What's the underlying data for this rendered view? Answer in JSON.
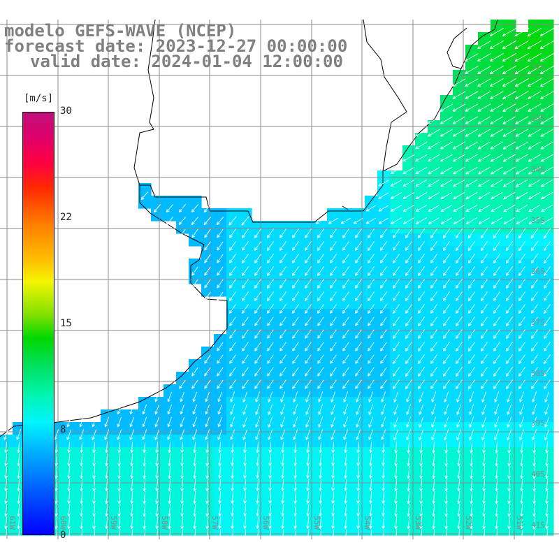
{
  "title": {
    "line1": "modelo GEFS-WAVE (NCEP)",
    "line2": "forecast date: 2023-12-27 00:00:00",
    "line3": "valid date: 2024-01-04 12:00:00"
  },
  "colorbar": {
    "units": "[m/s]",
    "ticks": [
      "30",
      "22",
      "15",
      "8",
      "0"
    ],
    "tick_values": [
      30,
      22,
      15,
      8,
      0
    ],
    "range": [
      0,
      30
    ],
    "colors": {
      "low": "#0000ff",
      "mid_low": "#00f5ff",
      "mid": "#00d800",
      "mid_high": "#f5f500",
      "high": "#ff2a00",
      "top": "#c0107a"
    }
  },
  "map": {
    "lat_labels": [
      "32S",
      "33S",
      "34S",
      "35S",
      "36S",
      "37S",
      "38S",
      "39S",
      "40S",
      "41S"
    ],
    "lat_values": [
      -32,
      -33,
      -34,
      -35,
      -36,
      -37,
      -38,
      -39,
      -40,
      -41
    ],
    "lon_labels": [
      "61W",
      "60W",
      "59W",
      "58W",
      "57W",
      "56W",
      "55W",
      "54W",
      "53W",
      "52W",
      "51W"
    ],
    "lon_values": [
      -61,
      -60,
      -59,
      -58,
      -57,
      -56,
      -55,
      -54,
      -53,
      -52,
      -51
    ],
    "land_color": "#ffffff",
    "coast_color": "#000000",
    "grid_color": "#888888",
    "arrow_color": "#ffffff",
    "field_variable": "wind speed",
    "wind_direction_general": "from north-east (north-east coast) veering to from north (south)",
    "wind_speed_range_shown": [
      6,
      12
    ]
  }
}
